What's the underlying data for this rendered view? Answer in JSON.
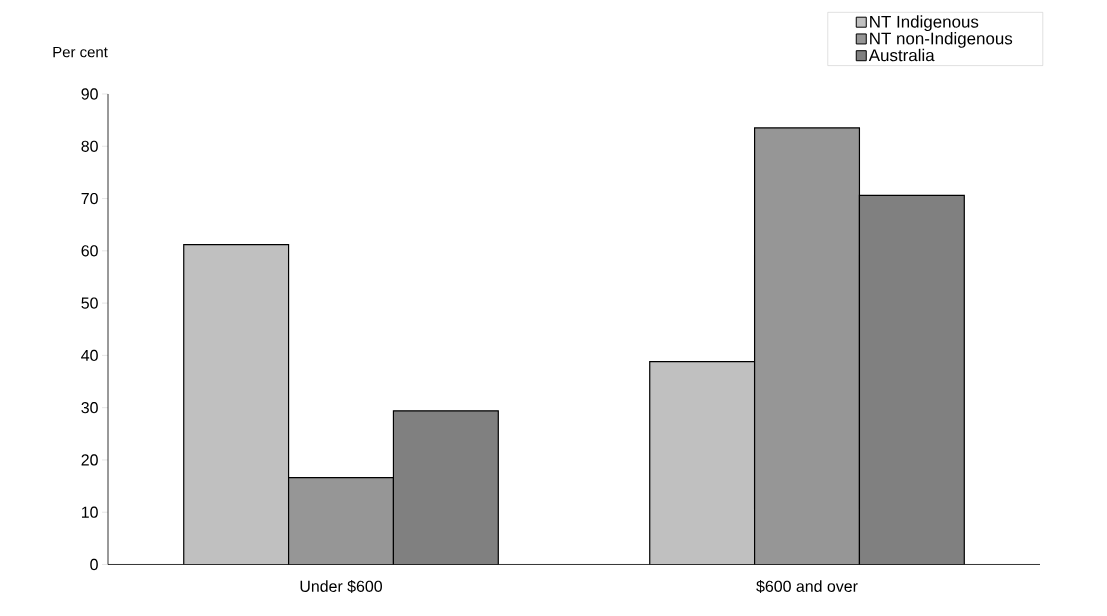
{
  "chart_data": {
    "type": "bar",
    "ylabel": "Per cent",
    "categories": [
      "Under $600",
      "$600 and over"
    ],
    "series": [
      {
        "name": "NT Indigenous",
        "color": "#c0c0c0",
        "values": [
          61.2,
          38.8
        ]
      },
      {
        "name": "NT non-Indigenous",
        "color": "#969696",
        "values": [
          16.6,
          83.5
        ]
      },
      {
        "name": "Australia",
        "color": "#808080",
        "values": [
          29.4,
          70.6
        ]
      }
    ],
    "ylim": [
      0,
      90
    ],
    "yticks": [
      0,
      10,
      20,
      30,
      40,
      50,
      60,
      70,
      80,
      90
    ],
    "legend": "top right",
    "grid": false
  }
}
